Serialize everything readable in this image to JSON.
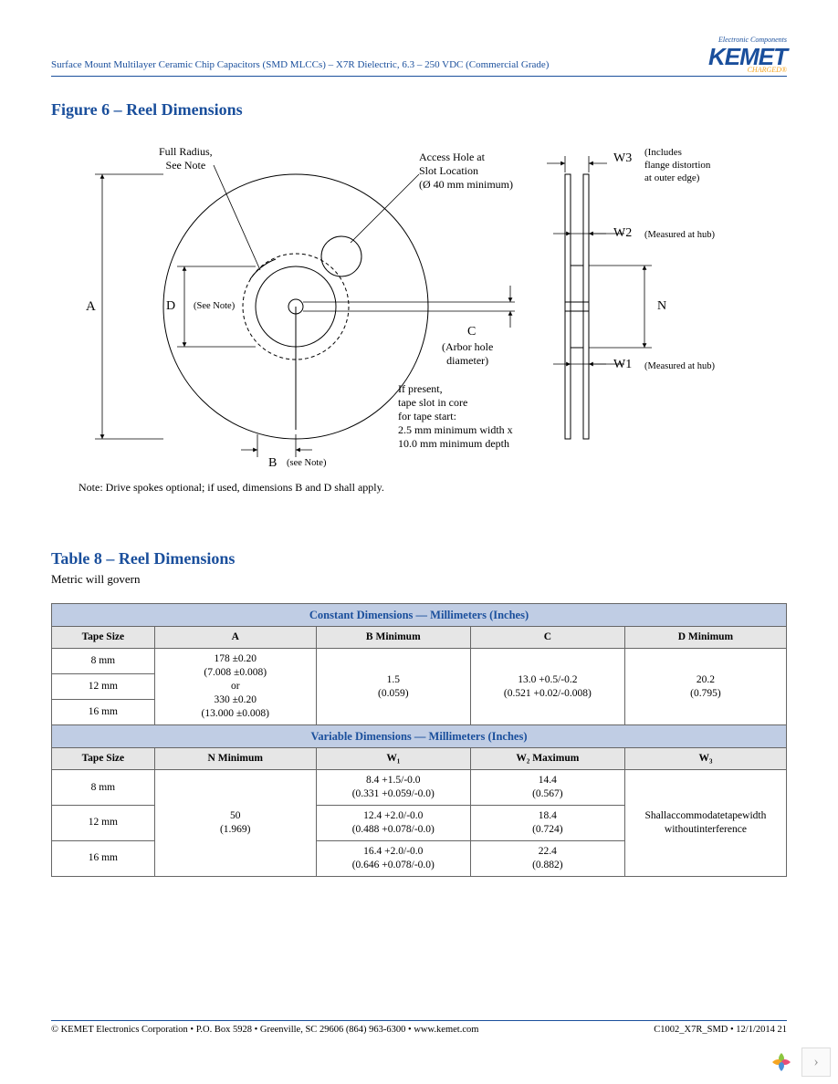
{
  "header": {
    "doc_title": "Surface Mount Multilayer Ceramic Chip Capacitors (SMD MLCCs) – X7R Dielectric, 6.3 – 250 VDC (Commercial Grade)",
    "logo_tagline": "Electronic Components",
    "logo_text": "KEMET",
    "logo_subtext": "CHARGED®"
  },
  "figure": {
    "title": "Figure 6 – Reel Dimensions",
    "labels": {
      "full_radius": "Full Radius,\nSee Note",
      "access_hole": "Access Hole at\nSlot Location\n(Ø 40 mm minimum)",
      "w3": "W3",
      "w3_note": "(Includes\nflange distortion\nat outer edge)",
      "w2": "W2",
      "w2_note": "(Measured at hub)",
      "w1": "W1",
      "w1_note": "(Measured at hub)",
      "n": "N",
      "a": "A",
      "d": "D",
      "d_note": "(See Note)",
      "b": "B",
      "b_note": "(see Note)",
      "c": "C",
      "c_note": "(Arbor hole\ndiameter)",
      "tape_slot": "If present,\ntape slot in core\nfor tape start:\n2.5 mm minimum width x\n10.0 mm minimum depth"
    },
    "footnote": "Note:  Drive spokes optional; if used, dimensions B and D shall apply."
  },
  "table": {
    "title": "Table 8 – Reel Dimensions",
    "subtitle": "Metric will govern",
    "section1_header": "Constant Dimensions — Millimeters (Inches)",
    "section2_header": "Variable Dimensions — Millimeters (Inches)",
    "cols1": [
      "Tape Size",
      "A",
      "B Minimum",
      "C",
      "D Minimum"
    ],
    "cols2": [
      "Tape Size",
      "N Minimum",
      "W₁",
      "W₂ Maximum",
      "W₃"
    ],
    "tape_sizes": [
      "8 mm",
      "12 mm",
      "16 mm"
    ],
    "col_a": "178 ±0.20\n(7.008 ±0.008)\nor\n330 ±0.20\n(13.000 ±0.008)",
    "col_b": "1.5\n(0.059)",
    "col_c": "13.0 +0.5/-0.2\n(0.521 +0.02/-0.008)",
    "col_d": "20.2\n(0.795)",
    "col_n": "50\n(1.969)",
    "w1_rows": [
      "8.4 +1.5/-0.0\n(0.331 +0.059/-0.0)",
      "12.4 +2.0/-0.0\n(0.488 +0.078/-0.0)",
      "16.4 +2.0/-0.0\n(0.646 +0.078/-0.0)"
    ],
    "w2_rows": [
      "14.4\n(0.567)",
      "18.4\n(0.724)",
      "22.4\n(0.882)"
    ],
    "w3_text": "Shallaccommodatetapewidth\nwithoutinterference"
  },
  "footer": {
    "left": "© KEMET Electronics Corporation • P.O. Box 5928 • Greenville, SC 29606 (864) 963-6300 • www.kemet.com",
    "right": "C1002_X7R_SMD • 12/1/2014  21"
  },
  "colors": {
    "brand_blue": "#1a4f9c",
    "brand_orange": "#f5a623",
    "table_header_bg": "#c0cde4",
    "table_subheader_bg": "#e6e6e6",
    "border": "#666666"
  }
}
